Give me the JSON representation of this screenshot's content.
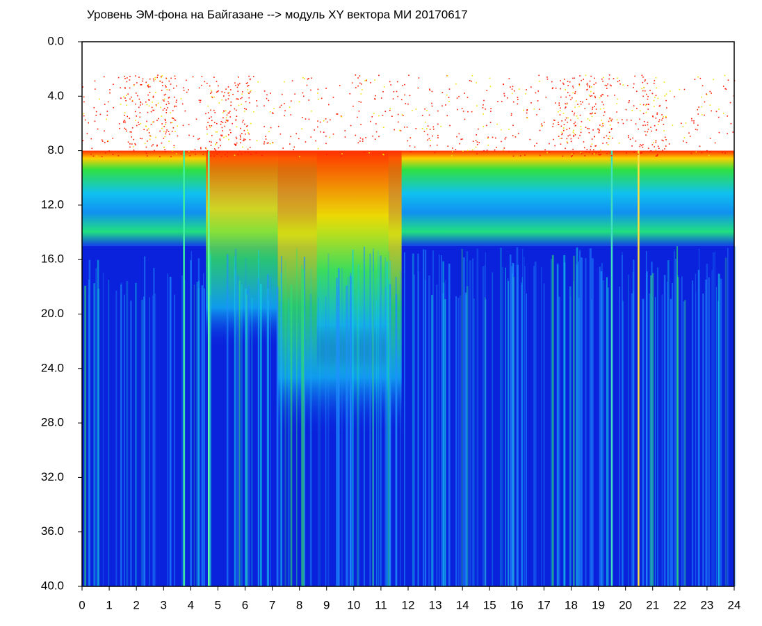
{
  "chart_data": {
    "type": "spectrogram",
    "title": "Уровень ЭМ-фона на Байгазане  -->  модуль XY вектора МИ  20170617",
    "xlim": [
      0,
      24
    ],
    "xticks": [
      0,
      1,
      2,
      3,
      4,
      5,
      6,
      7,
      8,
      9,
      10,
      11,
      12,
      13,
      14,
      15,
      16,
      17,
      18,
      19,
      20,
      21,
      22,
      23,
      24
    ],
    "ylim": [
      0,
      40
    ],
    "y_inverted": true,
    "yticks": [
      {
        "value": 0,
        "label": "0.0"
      },
      {
        "value": 4,
        "label": "4.0"
      },
      {
        "value": 8,
        "label": "8.0"
      },
      {
        "value": 12,
        "label": "12.0"
      },
      {
        "value": 16,
        "label": "16.0"
      },
      {
        "value": 20,
        "label": "20.0"
      },
      {
        "value": 24,
        "label": "24.0"
      },
      {
        "value": 28,
        "label": "28.0"
      },
      {
        "value": 32,
        "label": "32.0"
      },
      {
        "value": 36,
        "label": "36.0"
      },
      {
        "value": 40,
        "label": "40.0"
      }
    ]
  }
}
